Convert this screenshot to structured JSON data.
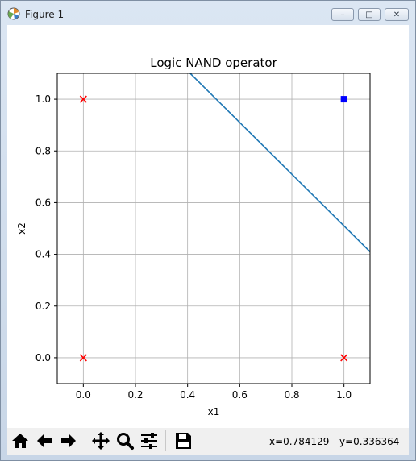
{
  "window": {
    "title": "Figure 1",
    "minimize_label": "–",
    "maximize_label": "□",
    "close_label": "✕"
  },
  "toolbar": {
    "buttons": [
      {
        "name": "home-button",
        "icon": "home-icon"
      },
      {
        "name": "back-button",
        "icon": "arrow-left-icon"
      },
      {
        "name": "forward-button",
        "icon": "arrow-right-icon"
      },
      {
        "name": "pan-button",
        "icon": "move-icon"
      },
      {
        "name": "zoom-button",
        "icon": "magnifier-icon"
      },
      {
        "name": "configure-subplots-button",
        "icon": "sliders-icon"
      },
      {
        "name": "save-button",
        "icon": "floppy-disk-icon"
      }
    ],
    "x_readout": "x=0.784129",
    "y_readout": "y=0.336364"
  },
  "chart_data": {
    "type": "scatter",
    "title": "Logic NAND operator",
    "xlabel": "x1",
    "ylabel": "x2",
    "xlim": [
      -0.1,
      1.1
    ],
    "ylim": [
      -0.1,
      1.1
    ],
    "xticks": [
      0.0,
      0.2,
      0.4,
      0.6,
      0.8,
      1.0
    ],
    "yticks": [
      0.0,
      0.2,
      0.4,
      0.6,
      0.8,
      1.0
    ],
    "xtick_labels": [
      "0.0",
      "0.2",
      "0.4",
      "0.6",
      "0.8",
      "1.0"
    ],
    "ytick_labels": [
      "0.0",
      "0.2",
      "0.4",
      "0.6",
      "0.8",
      "1.0"
    ],
    "grid": true,
    "series": [
      {
        "marker": "x",
        "color": "#ff0000",
        "x": [
          0,
          0,
          1
        ],
        "y": [
          0,
          1,
          0
        ]
      },
      {
        "marker": "square",
        "color": "#0000ff",
        "x": [
          1
        ],
        "y": [
          1
        ]
      }
    ],
    "line": {
      "color": "#1f77b4",
      "x": [
        0.41,
        1.1
      ],
      "y": [
        1.1,
        0.41
      ]
    }
  }
}
